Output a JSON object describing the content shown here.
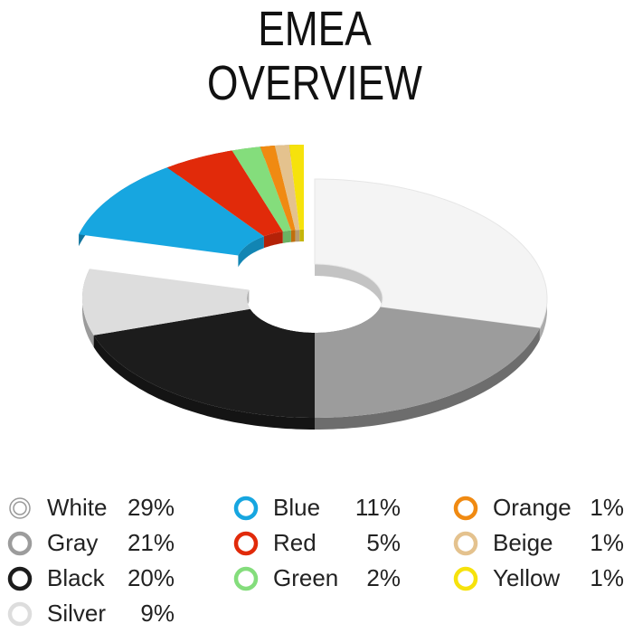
{
  "chart_data": {
    "type": "donut3d",
    "title": "EMEA OVERVIEW",
    "categories": [
      "White",
      "Gray",
      "Black",
      "Silver",
      "Blue",
      "Red",
      "Green",
      "Orange",
      "Beige",
      "Yellow"
    ],
    "values": [
      29,
      21,
      20,
      9,
      11,
      5,
      2,
      1,
      1,
      1
    ],
    "value_labels": [
      "29%",
      "21%",
      "20%",
      "9%",
      "11%",
      "5%",
      "2%",
      "1%",
      "1%",
      "1%"
    ],
    "colors": [
      "#f4f4f4",
      "#9c9c9c",
      "#1c1c1c",
      "#dddddd",
      "#17a6e0",
      "#e12a0a",
      "#84dd7c",
      "#f08a12",
      "#e4c28e",
      "#f6e20c"
    ],
    "exploded": [
      false,
      false,
      false,
      false,
      true,
      true,
      true,
      true,
      true,
      true
    ]
  }
}
